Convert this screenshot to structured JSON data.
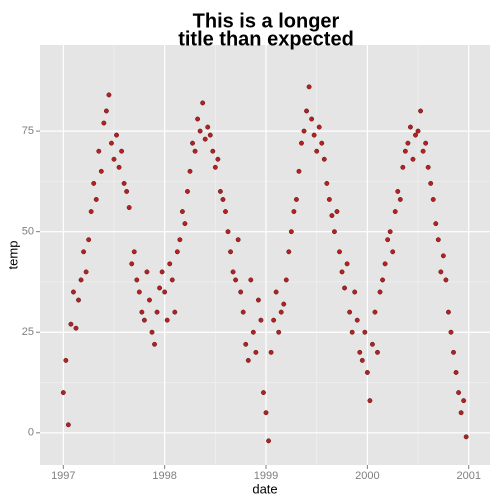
{
  "chart_data": {
    "type": "scatter",
    "title": [
      "This is a longer",
      "title than expected"
    ],
    "x_label": "date",
    "y_label": "temp",
    "xlim": [
      1996.77,
      2001.21
    ],
    "ylim": [
      -8,
      96.4
    ],
    "xticks": [
      1997,
      1998,
      1999,
      2000,
      2001
    ],
    "yticks": [
      0,
      25,
      50,
      75
    ],
    "grid": true,
    "series": [
      {
        "name": "temp",
        "color": "#b22222",
        "x": [
          1997,
          1997.025,
          1997.05,
          1997.075,
          1997.1,
          1997.125,
          1997.15,
          1997.175,
          1997.2,
          1997.225,
          1997.25,
          1997.275,
          1997.3,
          1997.325,
          1997.35,
          1997.375,
          1997.4,
          1997.425,
          1997.45,
          1997.475,
          1997.5,
          1997.525,
          1997.55,
          1997.575,
          1997.6,
          1997.625,
          1997.65,
          1997.675,
          1997.7,
          1997.725,
          1997.75,
          1997.775,
          1997.8,
          1997.825,
          1997.85,
          1997.875,
          1997.9,
          1997.925,
          1997.95,
          1997.975,
          1998,
          1998.025,
          1998.05,
          1998.075,
          1998.1,
          1998.125,
          1998.15,
          1998.175,
          1998.2,
          1998.225,
          1998.25,
          1998.275,
          1998.3,
          1998.325,
          1998.35,
          1998.375,
          1998.4,
          1998.425,
          1998.45,
          1998.475,
          1998.5,
          1998.525,
          1998.55,
          1998.575,
          1998.6,
          1998.625,
          1998.65,
          1998.675,
          1998.7,
          1998.725,
          1998.75,
          1998.775,
          1998.8,
          1998.825,
          1998.85,
          1998.875,
          1998.9,
          1998.925,
          1998.95,
          1998.975,
          1999,
          1999.025,
          1999.05,
          1999.075,
          1999.1,
          1999.125,
          1999.15,
          1999.175,
          1999.2,
          1999.225,
          1999.25,
          1999.275,
          1999.3,
          1999.325,
          1999.35,
          1999.375,
          1999.4,
          1999.425,
          1999.45,
          1999.475,
          1999.5,
          1999.525,
          1999.55,
          1999.575,
          1999.6,
          1999.625,
          1999.65,
          1999.675,
          1999.7,
          1999.725,
          1999.75,
          1999.775,
          1999.8,
          1999.825,
          1999.85,
          1999.875,
          1999.9,
          1999.925,
          1999.95,
          1999.975,
          2000,
          2000.025,
          2000.05,
          2000.075,
          2000.1,
          2000.125,
          2000.15,
          2000.175,
          2000.2,
          2000.225,
          2000.25,
          2000.275,
          2000.3,
          2000.325,
          2000.35,
          2000.375,
          2000.4,
          2000.425,
          2000.45,
          2000.475,
          2000.5,
          2000.525,
          2000.55,
          2000.575,
          2000.6,
          2000.625,
          2000.65,
          2000.675,
          2000.7,
          2000.725,
          2000.75,
          2000.775,
          2000.8,
          2000.825,
          2000.85,
          2000.875,
          2000.9,
          2000.925,
          2000.95,
          2000.975
        ],
        "values": [
          10,
          18,
          2,
          27,
          35,
          26,
          33,
          38,
          45,
          40,
          48,
          55,
          62,
          58,
          70,
          65,
          77,
          80,
          84,
          72,
          68,
          74,
          66,
          70,
          62,
          60,
          56,
          42,
          45,
          38,
          35,
          30,
          28,
          40,
          33,
          25,
          22,
          30,
          36,
          40,
          35,
          28,
          42,
          38,
          30,
          45,
          48,
          55,
          52,
          60,
          65,
          72,
          70,
          78,
          75,
          82,
          73,
          76,
          74,
          70,
          66,
          68,
          60,
          58,
          55,
          50,
          45,
          40,
          38,
          48,
          35,
          30,
          22,
          18,
          38,
          25,
          20,
          33,
          28,
          10,
          5,
          -2,
          20,
          28,
          35,
          25,
          30,
          32,
          38,
          45,
          50,
          55,
          58,
          65,
          72,
          75,
          80,
          86,
          78,
          74,
          70,
          76,
          72,
          68,
          62,
          58,
          54,
          50,
          55,
          45,
          40,
          36,
          42,
          30,
          25,
          35,
          28,
          20,
          18,
          25,
          15,
          8,
          22,
          30,
          20,
          35,
          38,
          42,
          48,
          50,
          45,
          55,
          60,
          58,
          66,
          70,
          72,
          76,
          68,
          74,
          75,
          80,
          70,
          72,
          66,
          62,
          58,
          52,
          48,
          40,
          44,
          38,
          30,
          25,
          20,
          15,
          10,
          5,
          8,
          -1
        ]
      }
    ]
  }
}
